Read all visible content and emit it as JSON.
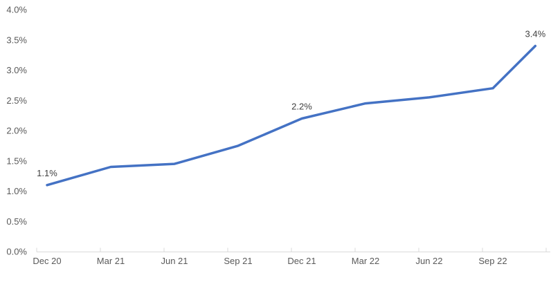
{
  "colors": {
    "background": "#FFFFFF",
    "line": "#4472C4",
    "axis_line": "#D9D9D9",
    "tick_label": "#595959",
    "data_label": "#404040"
  },
  "chart_data": {
    "type": "line",
    "title": "",
    "grid": false,
    "legend": false,
    "y_axis": {
      "range": [
        0,
        4
      ],
      "step": 0.5,
      "unit": "%",
      "tick_labels": [
        "0.0%",
        "0.5%",
        "1.0%",
        "1.5%",
        "2.0%",
        "2.5%",
        "3.0%",
        "3.5%",
        "4.0%"
      ]
    },
    "x_axis": {
      "tick_labels": [
        "Dec 20",
        "Mar 21",
        "Jun 21",
        "Sep 21",
        "Dec 21",
        "Mar 22",
        "Jun 22",
        "Sep 22"
      ]
    },
    "series": [
      {
        "name": "rate",
        "color": "#4472C4",
        "points": [
          {
            "month": 0,
            "label": "Dec 20",
            "value": 1.1
          },
          {
            "month": 3,
            "label": "Mar 21",
            "value": 1.4
          },
          {
            "month": 6,
            "label": "Jun 21",
            "value": 1.45
          },
          {
            "month": 9,
            "label": "Sep 21",
            "value": 1.75
          },
          {
            "month": 12,
            "label": "Dec 21",
            "value": 2.2
          },
          {
            "month": 15,
            "label": "Mar 22",
            "value": 2.45
          },
          {
            "month": 18,
            "label": "Jun 22",
            "value": 2.55
          },
          {
            "month": 21,
            "label": "Sep 22",
            "value": 2.7
          },
          {
            "month": 23,
            "label": "",
            "value": 3.4
          }
        ]
      }
    ],
    "annotations": [
      {
        "text": "1.1%",
        "month": 0
      },
      {
        "text": "2.2%",
        "month": 12
      },
      {
        "text": "3.4%",
        "month": 23
      }
    ]
  }
}
